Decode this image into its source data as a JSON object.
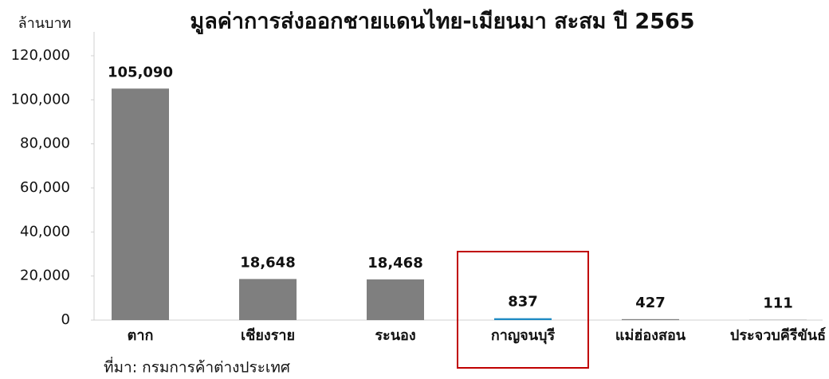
{
  "chart_data": {
    "type": "bar",
    "title": "มูลค่าการส่งออกชายแดนไทย-เมียนมา สะสม ปี 2565",
    "y_label": "ล้านบาท",
    "source": "ที่มา: กรมการค้าต่างประเทศ",
    "categories": [
      "ตาก",
      "เชียงราย",
      "ระนอง",
      "กาญจนบุรี",
      "แม่ฮ่องสอน",
      "ประจวบคีรีขันธ์"
    ],
    "values": [
      105090,
      18648,
      18468,
      837,
      427,
      111
    ],
    "value_labels": [
      "105,090",
      "18,648",
      "18,468",
      "837",
      "427",
      "111"
    ],
    "colors": [
      "#7f7f7f",
      "#7f7f7f",
      "#7f7f7f",
      "#1f8bc4",
      "#7f7f7f",
      "#7f7f7f"
    ],
    "ylim": [
      0,
      120000
    ],
    "yticks": [
      0,
      {
        "value": 20000,
        "label": "20,000"
      },
      {
        "value": 40000,
        "label": "40,000"
      },
      {
        "value": 60000,
        "label": "60,000"
      },
      {
        "value": 80000,
        "label": "80,000"
      },
      {
        "value": 100000,
        "label": "100,000"
      },
      {
        "value": 120000,
        "label": "120,000"
      }
    ],
    "grid": false
  }
}
